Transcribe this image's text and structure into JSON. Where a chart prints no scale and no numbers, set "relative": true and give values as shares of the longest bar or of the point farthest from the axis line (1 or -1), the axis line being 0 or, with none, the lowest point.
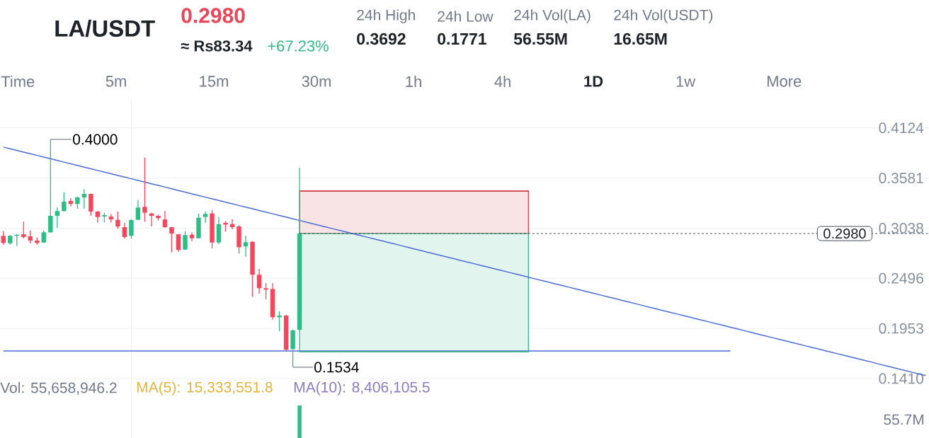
{
  "chart_data": [
    {
      "type": "candlestick",
      "title": "LA/USDT",
      "annotations": [
        "0.2980",
        "≈ Rs83.34",
        "+67.23%",
        "24h High",
        "0.3692",
        "24h Low",
        "0.1771",
        "24h Vol(LA)",
        "56.55M",
        "24h Vol(USDT)",
        "16.65M",
        "Time",
        "5m",
        "15m",
        "30m",
        "1h",
        "4h",
        "1D",
        "1w",
        "More",
        "0.4000",
        "0.1534"
      ],
      "categories": [
        null,
        null,
        null,
        null,
        null,
        null,
        null,
        null,
        null,
        null,
        null,
        null,
        null,
        null,
        null,
        null,
        null,
        null,
        null,
        null,
        null,
        null,
        null,
        null,
        null,
        null,
        null,
        null,
        null,
        null,
        null,
        null,
        null,
        null,
        null,
        null,
        null,
        null,
        null,
        null,
        null,
        null,
        null,
        null,
        null,
        null,
        null,
        null,
        null,
        null,
        null,
        null,
        null,
        null,
        null,
        null,
        null,
        null,
        null,
        null,
        null,
        null,
        null,
        null,
        null,
        null,
        null,
        null,
        null,
        null,
        null,
        null,
        null,
        null,
        null,
        null,
        null,
        null,
        null,
        null,
        null,
        null,
        null,
        null,
        null,
        null,
        null,
        null,
        null,
        null,
        null,
        null,
        null,
        null,
        null,
        null,
        null,
        null,
        null,
        null,
        null,
        null,
        null,
        null,
        null,
        null,
        null,
        null,
        null,
        null,
        null,
        null,
        null,
        null,
        null,
        null,
        null,
        null,
        null,
        null,
        null,
        null,
        null,
        null,
        null,
        null,
        null,
        null,
        null,
        null,
        null,
        null,
        null,
        null,
        null,
        null,
        null,
        null
      ],
      "ohlc": [
        [
          0.2955,
          0.3005,
          0.286,
          0.2878
        ],
        [
          0.2875,
          0.2965,
          0.286,
          0.2955
        ],
        [
          0.2955,
          0.2972,
          0.2845,
          0.2967
        ],
        [
          0.2972,
          0.3108,
          0.2929,
          0.2942
        ],
        [
          0.295,
          0.3013,
          0.2871,
          0.2904
        ],
        [
          0.2904,
          0.2937,
          0.286,
          0.2878
        ],
        [
          0.2883,
          0.3013,
          0.2878,
          0.2993
        ],
        [
          0.2993,
          0.4,
          0.299,
          0.3172
        ],
        [
          0.3172,
          0.3261,
          0.3044,
          0.3223
        ],
        [
          0.3223,
          0.3427,
          0.322,
          0.3325
        ],
        [
          0.3333,
          0.3363,
          0.3274,
          0.33
        ],
        [
          0.33,
          0.3381,
          0.3248,
          0.3371
        ],
        [
          0.3371,
          0.346,
          0.3248,
          0.3409
        ],
        [
          0.3409,
          0.3412,
          0.3172,
          0.3218
        ],
        [
          0.3218,
          0.3223,
          0.31,
          0.3159
        ],
        [
          0.3164,
          0.3205,
          0.31,
          0.3179
        ],
        [
          0.3164,
          0.3189,
          0.31,
          0.3133
        ],
        [
          0.3128,
          0.3218,
          0.3031,
          0.3057
        ],
        [
          0.3049,
          0.3095,
          0.2924,
          0.2942
        ],
        [
          0.2955,
          0.3133,
          0.2924,
          0.3126
        ],
        [
          0.3128,
          0.3343,
          0.3125,
          0.3261
        ],
        [
          0.3269,
          0.3802,
          0.3108,
          0.3205
        ],
        [
          0.3197,
          0.3205,
          0.3057,
          0.3172
        ],
        [
          0.3172,
          0.3185,
          0.312,
          0.3146
        ],
        [
          0.3133,
          0.3223,
          0.3044,
          0.3049
        ],
        [
          0.3049,
          0.3052,
          0.2776,
          0.298
        ],
        [
          0.2972,
          0.2975,
          0.2781,
          0.2802
        ],
        [
          0.2806,
          0.3005,
          0.2803,
          0.2963
        ],
        [
          0.2967,
          0.2993,
          0.2896,
          0.2929
        ],
        [
          0.2929,
          0.3197,
          0.2926,
          0.3151
        ],
        [
          0.3159,
          0.3218,
          0.3095,
          0.3192
        ],
        [
          0.3197,
          0.3235,
          0.2819,
          0.2883
        ],
        [
          0.2883,
          0.3159,
          0.2865,
          0.3082
        ],
        [
          0.3095,
          0.3113,
          0.3001,
          0.3077
        ],
        [
          0.3082,
          0.3133,
          0.3026,
          0.3049
        ],
        [
          0.3057,
          0.307,
          0.2763,
          0.2832
        ],
        [
          0.284,
          0.2955,
          0.273,
          0.2886
        ],
        [
          0.2891,
          0.2894,
          0.2296,
          0.2534
        ],
        [
          0.2534,
          0.2597,
          0.2329,
          0.2388
        ],
        [
          0.2388,
          0.2444,
          0.2266,
          0.2373
        ],
        [
          0.238,
          0.2444,
          0.2048,
          0.2074
        ],
        [
          0.2074,
          0.2138,
          0.1921,
          0.2092
        ],
        [
          0.2092,
          0.2099,
          0.1711,
          0.1722
        ],
        [
          0.1729,
          0.1941,
          0.1534,
          0.1933
        ],
        [
          0.1938,
          0.369,
          0.193,
          0.298
        ],
        null,
        null,
        null,
        null,
        null,
        null,
        null,
        null,
        null,
        null,
        null,
        null,
        null,
        null,
        null,
        null,
        null,
        null,
        null,
        null,
        null,
        null,
        null,
        null,
        null,
        null,
        null,
        null,
        null,
        null,
        null,
        null,
        null,
        null,
        null,
        null,
        null,
        null,
        null,
        null,
        null,
        null,
        null,
        null,
        null,
        null,
        null,
        null,
        null,
        null,
        null,
        null,
        null,
        null,
        null,
        null,
        null,
        null,
        null,
        null,
        null,
        null,
        null,
        null,
        null,
        null,
        null,
        null,
        null,
        null,
        null,
        null,
        null,
        null,
        null,
        null,
        null,
        null,
        null,
        null,
        null,
        null,
        null,
        null,
        null,
        null,
        null,
        null,
        null,
        null,
        null,
        null,
        null
      ],
      "colors": [
        "#f6465d",
        "#2ebd85",
        "#2ebd85",
        "#f6465d",
        "#f6465d",
        "#f6465d",
        "#2ebd85",
        "#2ebd85",
        "#2ebd85",
        "#2ebd85",
        "#f6465d",
        "#2ebd85",
        "#2ebd85",
        "#f6465d",
        "#f6465d",
        "#2ebd85",
        "#f6465d",
        "#f6465d",
        "#f6465d",
        "#2ebd85",
        "#2ebd85",
        "#f6465d",
        "#f6465d",
        "#f6465d",
        "#f6465d",
        "#f6465d",
        "#f6465d",
        "#2ebd85",
        "#f6465d",
        "#2ebd85",
        "#2ebd85",
        "#f6465d",
        "#2ebd85",
        "#f6465d",
        "#f6465d",
        "#f6465d",
        "#2ebd85",
        "#f6465d",
        "#f6465d",
        "#f6465d",
        "#f6465d",
        "#2ebd85",
        "#f6465d",
        "#2ebd85",
        "#2ebd85",
        null,
        null,
        null,
        null,
        null,
        null,
        null,
        null,
        null,
        null,
        null,
        null,
        null,
        null,
        null,
        null,
        null,
        null,
        null,
        null,
        null,
        null,
        null,
        null,
        null,
        null,
        null,
        null,
        null,
        null,
        null,
        null,
        null,
        null,
        null,
        null,
        null,
        null,
        null,
        null,
        null,
        null,
        null,
        null,
        null,
        null,
        null,
        null,
        null,
        null,
        null,
        null,
        null,
        null,
        null,
        null,
        null,
        null,
        null,
        null,
        null,
        null,
        null,
        null,
        null,
        null,
        null,
        null,
        null,
        null,
        null,
        null,
        null,
        null,
        null,
        null,
        null,
        null,
        null,
        null,
        null,
        null,
        null,
        null,
        null,
        null,
        null,
        null,
        null,
        null,
        null,
        null,
        null
      ],
      "series": [
        {
          "type": "line",
          "color": "#4a6cd4",
          "values": [
            0.3916,
            0.3898,
            0.388,
            0.3862,
            0.3844,
            0.3826,
            0.3808,
            0.379,
            0.3772,
            0.3753,
            0.3735,
            0.3717,
            0.3699,
            0.3681,
            0.3663,
            0.3645,
            0.3627,
            0.3609,
            0.3591,
            0.3573,
            0.3555,
            0.3537,
            0.3519,
            0.3501,
            0.3483,
            0.3465,
            0.3446,
            0.3428,
            0.341,
            0.3392,
            0.3374,
            0.3356,
            0.3338,
            0.332,
            0.3302,
            0.3284,
            0.3266,
            0.3248,
            0.323,
            0.3212,
            0.3194,
            0.3176,
            0.3158,
            0.314,
            0.3121,
            0.3103,
            0.3085,
            0.3067,
            0.3049,
            0.3031,
            0.3013,
            0.2995,
            0.2977,
            0.2959,
            0.2941,
            0.2923,
            0.2905,
            0.2887,
            0.2869,
            0.2851,
            0.2833,
            0.2814,
            0.2796,
            0.2778,
            0.276,
            0.2742,
            0.2724,
            0.2706,
            0.2688,
            0.267,
            0.2652,
            0.2634,
            0.2616,
            0.2598,
            0.258,
            0.2562,
            0.2544,
            0.2526,
            0.2507,
            0.2489,
            0.2471,
            0.2453,
            0.2435,
            0.2417,
            0.2399,
            0.2381,
            0.2363,
            0.2345,
            0.2327,
            0.2309,
            0.2291,
            0.2273,
            0.2255,
            0.2237,
            0.2219,
            0.22,
            0.2182,
            0.2164,
            0.2146,
            0.2128,
            0.211,
            0.2092,
            0.2074,
            0.2056,
            0.2038,
            0.202,
            0.2002,
            0.1984,
            0.1966,
            0.1948,
            0.193,
            0.1912,
            0.1893,
            0.1875,
            0.1857,
            0.1839,
            0.1821,
            0.1803,
            0.1785,
            0.1767,
            0.1749,
            0.1731,
            0.1713,
            0.1695,
            0.1677,
            0.1659,
            0.1641,
            0.1623,
            0.1605,
            0.1587,
            0.1568,
            0.155,
            0.1532,
            0.1514,
            0.1496,
            0.1478,
            0.146,
            0.1442
          ]
        },
        {
          "type": "line",
          "color": "#4a6cd4",
          "values": [
            0.1709,
            0.1709,
            0.1709,
            0.1709,
            0.1709,
            0.1709,
            0.1709,
            0.1709,
            0.1709,
            0.1709,
            0.1709,
            0.1709,
            0.1709,
            0.1709,
            0.1709,
            0.1709,
            0.1709,
            0.1709,
            0.1709,
            0.1709,
            0.1709,
            0.1709,
            0.1709,
            0.1709,
            0.1709,
            0.1709,
            0.1709,
            0.1709,
            0.1709,
            0.1709,
            0.1709,
            0.1709,
            0.1709,
            0.1709,
            0.1709,
            0.1709,
            0.1709,
            0.1709,
            0.1709,
            0.1709,
            0.1709,
            0.1709,
            0.1709,
            0.1709,
            0.1709,
            0.1709,
            0.1709,
            0.1709,
            0.1709,
            0.1709,
            0.1709,
            0.1709,
            0.1709,
            0.1709,
            0.1709,
            0.1709,
            0.1709,
            0.1709,
            0.1709,
            0.1709,
            0.1709,
            0.1709,
            0.1709,
            0.1709,
            0.1709,
            0.1709,
            0.1709,
            0.1709,
            0.1709,
            0.1709,
            0.1709,
            0.1709,
            0.1709,
            0.1709,
            0.1709,
            0.1709,
            0.1709,
            0.1709,
            0.1709,
            0.1709,
            0.1709,
            0.1709,
            0.1709,
            0.1709,
            0.1709,
            0.1709,
            0.1709,
            0.1709,
            0.1709,
            0.1709,
            0.1709,
            0.1709,
            0.1709,
            0.1709,
            0.1709,
            0.1709,
            0.1709,
            0.1709,
            0.1709,
            0.1709,
            0.1709,
            0.1709,
            0.1709,
            0.1709,
            0.1709,
            0.1709,
            0.1709,
            0.1709,
            0.1709,
            null,
            null,
            null,
            null,
            null,
            null,
            null,
            null,
            null,
            null,
            null,
            null,
            null,
            null,
            null,
            null,
            null,
            null,
            null,
            null,
            null,
            null,
            null,
            null,
            null,
            null,
            null,
            null,
            null
          ]
        },
        {
          "type": "line",
          "color": "#d0454f",
          "values": [
            null,
            null,
            null,
            null,
            null,
            null,
            null,
            null,
            null,
            null,
            null,
            null,
            null,
            null,
            null,
            null,
            null,
            null,
            null,
            null,
            null,
            null,
            null,
            null,
            null,
            null,
            null,
            null,
            null,
            null,
            null,
            null,
            null,
            null,
            null,
            null,
            null,
            null,
            null,
            null,
            null,
            null,
            null,
            null,
            0.344,
            0.344,
            0.344,
            0.344,
            0.344,
            0.344,
            0.344,
            0.344,
            0.344,
            0.344,
            0.344,
            0.344,
            0.344,
            0.344,
            0.344,
            0.344,
            0.344,
            0.344,
            0.344,
            0.344,
            0.344,
            0.344,
            0.344,
            0.344,
            0.344,
            0.344,
            0.344,
            0.344,
            0.344,
            0.344,
            0.344,
            0.344,
            0.344,
            0.344,
            0.344,
            null,
            null,
            null,
            null,
            null,
            null,
            null,
            null,
            null,
            null,
            null,
            null,
            null,
            null,
            null,
            null,
            null,
            null,
            null,
            null,
            null,
            null,
            null,
            null,
            null,
            null,
            null,
            null,
            null,
            null,
            null,
            null,
            null,
            null,
            null,
            null,
            null,
            null,
            null,
            null,
            null,
            null,
            null,
            null,
            null,
            null,
            null,
            null,
            null,
            null,
            null,
            null,
            null,
            null,
            null,
            null,
            null,
            null,
            null
          ],
          "lower": [
            null,
            null,
            null,
            null,
            null,
            null,
            null,
            null,
            null,
            null,
            null,
            null,
            null,
            null,
            null,
            null,
            null,
            null,
            null,
            null,
            null,
            null,
            null,
            null,
            null,
            null,
            null,
            null,
            null,
            null,
            null,
            null,
            null,
            null,
            null,
            null,
            null,
            null,
            null,
            null,
            null,
            null,
            null,
            null,
            0.298,
            0.298,
            0.298,
            0.298,
            0.298,
            0.298,
            0.298,
            0.298,
            0.298,
            0.298,
            0.298,
            0.298,
            0.298,
            0.298,
            0.298,
            0.298,
            0.298,
            0.298,
            0.298,
            0.298,
            0.298,
            0.298,
            0.298,
            0.298,
            0.298,
            0.298,
            0.298,
            0.298,
            0.298,
            0.298,
            0.298,
            0.298,
            0.298,
            0.298,
            0.298,
            null,
            null,
            null,
            null,
            null,
            null,
            null,
            null,
            null,
            null,
            null,
            null,
            null,
            null,
            null,
            null,
            null,
            null,
            null,
            null,
            null,
            null,
            null,
            null,
            null,
            null,
            null,
            null,
            null,
            null,
            null,
            null,
            null,
            null,
            null,
            null,
            null,
            null,
            null,
            null,
            null,
            null,
            null,
            null,
            null,
            null,
            null,
            null,
            null,
            null,
            null,
            null,
            null,
            null,
            null,
            null,
            null,
            null,
            null
          ],
          "upper": [
            null,
            null,
            null,
            null,
            null,
            null,
            null,
            null,
            null,
            null,
            null,
            null,
            null,
            null,
            null,
            null,
            null,
            null,
            null,
            null,
            null,
            null,
            null,
            null,
            null,
            null,
            null,
            null,
            null,
            null,
            null,
            null,
            null,
            null,
            null,
            null,
            null,
            null,
            null,
            null,
            null,
            null,
            null,
            null,
            0.344,
            0.344,
            0.344,
            0.344,
            0.344,
            0.344,
            0.344,
            0.344,
            0.344,
            0.344,
            0.344,
            0.344,
            0.344,
            0.344,
            0.344,
            0.344,
            0.344,
            0.344,
            0.344,
            0.344,
            0.344,
            0.344,
            0.344,
            0.344,
            0.344,
            0.344,
            0.344,
            0.344,
            0.344,
            0.344,
            0.344,
            0.344,
            0.344,
            0.344,
            0.344,
            null,
            null,
            null,
            null,
            null,
            null,
            null,
            null,
            null,
            null,
            null,
            null,
            null,
            null,
            null,
            null,
            null,
            null,
            null,
            null,
            null,
            null,
            null,
            null,
            null,
            null,
            null,
            null,
            null,
            null,
            null,
            null,
            null,
            null,
            null,
            null,
            null,
            null,
            null,
            null,
            null,
            null,
            null,
            null,
            null,
            null,
            null,
            null,
            null,
            null,
            null,
            null,
            null,
            null,
            null,
            null,
            null,
            null,
            null
          ]
        },
        {
          "type": "line",
          "color": "#3fb68b",
          "values": [
            null,
            null,
            null,
            null,
            null,
            null,
            null,
            null,
            null,
            null,
            null,
            null,
            null,
            null,
            null,
            null,
            null,
            null,
            null,
            null,
            null,
            null,
            null,
            null,
            null,
            null,
            null,
            null,
            null,
            null,
            null,
            null,
            null,
            null,
            null,
            null,
            null,
            null,
            null,
            null,
            null,
            null,
            null,
            null,
            0.1701,
            0.1701,
            0.1701,
            0.1701,
            0.1701,
            0.1701,
            0.1701,
            0.1701,
            0.1701,
            0.1701,
            0.1701,
            0.1701,
            0.1701,
            0.1701,
            0.1701,
            0.1701,
            0.1701,
            0.1701,
            0.1701,
            0.1701,
            0.1701,
            0.1701,
            0.1701,
            0.1701,
            0.1701,
            0.1701,
            0.1701,
            0.1701,
            0.1701,
            0.1701,
            0.1701,
            0.1701,
            0.1701,
            0.1701,
            0.1701,
            null,
            null,
            null,
            null,
            null,
            null,
            null,
            null,
            null,
            null,
            null,
            null,
            null,
            null,
            null,
            null,
            null,
            null,
            null,
            null,
            null,
            null,
            null,
            null,
            null,
            null,
            null,
            null,
            null,
            null,
            null,
            null,
            null,
            null,
            null,
            null,
            null,
            null,
            null,
            null,
            null,
            null,
            null,
            null,
            null,
            null,
            null,
            null,
            null,
            null,
            null,
            null,
            null,
            null,
            null,
            null,
            null,
            null,
            null
          ],
          "lower": [
            null,
            null,
            null,
            null,
            null,
            null,
            null,
            null,
            null,
            null,
            null,
            null,
            null,
            null,
            null,
            null,
            null,
            null,
            null,
            null,
            null,
            null,
            null,
            null,
            null,
            null,
            null,
            null,
            null,
            null,
            null,
            null,
            null,
            null,
            null,
            null,
            null,
            null,
            null,
            null,
            null,
            null,
            null,
            null,
            0.1701,
            0.1701,
            0.1701,
            0.1701,
            0.1701,
            0.1701,
            0.1701,
            0.1701,
            0.1701,
            0.1701,
            0.1701,
            0.1701,
            0.1701,
            0.1701,
            0.1701,
            0.1701,
            0.1701,
            0.1701,
            0.1701,
            0.1701,
            0.1701,
            0.1701,
            0.1701,
            0.1701,
            0.1701,
            0.1701,
            0.1701,
            0.1701,
            0.1701,
            0.1701,
            0.1701,
            0.1701,
            0.1701,
            0.1701,
            0.1701,
            null,
            null,
            null,
            null,
            null,
            null,
            null,
            null,
            null,
            null,
            null,
            null,
            null,
            null,
            null,
            null,
            null,
            null,
            null,
            null,
            null,
            null,
            null,
            null,
            null,
            null,
            null,
            null,
            null,
            null,
            null,
            null,
            null,
            null,
            null,
            null,
            null,
            null,
            null,
            null,
            null,
            null,
            null,
            null,
            null,
            null,
            null,
            null,
            null,
            null,
            null,
            null,
            null,
            null,
            null,
            null,
            null,
            null,
            null
          ],
          "upper": [
            null,
            null,
            null,
            null,
            null,
            null,
            null,
            null,
            null,
            null,
            null,
            null,
            null,
            null,
            null,
            null,
            null,
            null,
            null,
            null,
            null,
            null,
            null,
            null,
            null,
            null,
            null,
            null,
            null,
            null,
            null,
            null,
            null,
            null,
            null,
            null,
            null,
            null,
            null,
            null,
            null,
            null,
            null,
            null,
            0.298,
            0.298,
            0.298,
            0.298,
            0.298,
            0.298,
            0.298,
            0.298,
            0.298,
            0.298,
            0.298,
            0.298,
            0.298,
            0.298,
            0.298,
            0.298,
            0.298,
            0.298,
            0.298,
            0.298,
            0.298,
            0.298,
            0.298,
            0.298,
            0.298,
            0.298,
            0.298,
            0.298,
            0.298,
            0.298,
            0.298,
            0.298,
            0.298,
            0.298,
            0.298,
            null,
            null,
            null,
            null,
            null,
            null,
            null,
            null,
            null,
            null,
            null,
            null,
            null,
            null,
            null,
            null,
            null,
            null,
            null,
            null,
            null,
            null,
            null,
            null,
            null,
            null,
            null,
            null,
            null,
            null,
            null,
            null,
            null,
            null,
            null,
            null,
            null,
            null,
            null,
            null,
            null,
            null,
            null,
            null,
            null,
            null,
            null,
            null,
            null,
            null,
            null,
            null,
            null,
            null,
            null,
            null,
            null,
            null,
            null
          ]
        }
      ],
      "ylim": [
        0.1387,
        0.4436
      ],
      "yticks": [
        0.4124,
        0.3581,
        0.3038,
        0.2496,
        0.1953,
        {
          "value": 0.141,
          "label": "0.1410"
        }
      ],
      "tick_labels": "y",
      "grid": "y",
      "ref_lines": [
        {
          "axis": "y",
          "value": 0.298,
          "label": "0.2980",
          "line_style": "dashed",
          "color": "#474d57"
        }
      ]
    },
    {
      "type": "bar",
      "relative": true,
      "color": "#2ebd85",
      "categories": [
        null,
        null,
        null,
        null,
        null,
        null,
        null,
        null,
        null,
        null,
        null,
        null,
        null,
        null,
        null,
        null,
        null,
        null,
        null,
        null,
        null,
        null,
        null,
        null,
        null,
        null,
        null,
        null,
        null,
        null,
        null,
        null,
        null,
        null,
        null,
        null,
        null,
        null,
        null,
        null,
        null,
        null,
        null,
        null,
        null,
        null,
        null,
        null,
        null,
        null,
        null,
        null,
        null,
        null,
        null,
        null,
        null,
        null,
        null,
        null,
        null,
        null,
        null,
        null,
        null,
        null,
        null,
        null,
        null,
        null,
        null,
        null,
        null,
        null,
        null,
        null,
        null,
        null,
        null,
        null,
        null,
        null,
        null,
        null,
        null,
        null,
        null,
        null,
        null,
        null,
        null,
        null,
        null,
        null,
        null,
        null,
        null,
        null,
        null,
        null,
        null,
        null,
        null,
        null,
        null,
        null,
        null,
        null,
        null,
        null,
        null,
        null,
        null,
        null,
        null,
        null,
        null,
        null,
        null,
        null,
        null,
        null,
        null,
        null,
        null,
        null,
        null,
        null,
        null,
        null,
        null,
        null,
        null,
        null,
        null,
        null,
        null,
        null
      ],
      "values": [
        null,
        null,
        null,
        null,
        null,
        null,
        null,
        null,
        null,
        null,
        null,
        null,
        null,
        null,
        null,
        null,
        null,
        null,
        null,
        null,
        null,
        null,
        null,
        null,
        null,
        null,
        null,
        null,
        null,
        null,
        null,
        null,
        null,
        null,
        null,
        null,
        null,
        null,
        null,
        null,
        null,
        null,
        null,
        null,
        1,
        null,
        null,
        null,
        null,
        null,
        null,
        null,
        null,
        null,
        null,
        null,
        null,
        null,
        null,
        null,
        null,
        null,
        null,
        null,
        null,
        null,
        null,
        null,
        null,
        null,
        null,
        null,
        null,
        null,
        null,
        null,
        null,
        null,
        null,
        null,
        null,
        null,
        null,
        null,
        null,
        null,
        null,
        null,
        null,
        null,
        null,
        null,
        null,
        null,
        null,
        null,
        null,
        null,
        null,
        null,
        null,
        null,
        null,
        null,
        null,
        null,
        null,
        null,
        null,
        null,
        null,
        null,
        null,
        null,
        null,
        null,
        null,
        null,
        null,
        null,
        null,
        null,
        null,
        null,
        null,
        null,
        null,
        null,
        null,
        null,
        null,
        null,
        null,
        null,
        null,
        null,
        null,
        null
      ],
      "tick_labels": false,
      "annotations": [
        "Vol: 55,658,946.2",
        "MA(5): 15,333,551.8",
        "MA(10): 8,406,105.5",
        "55.7M"
      ]
    }
  ]
}
